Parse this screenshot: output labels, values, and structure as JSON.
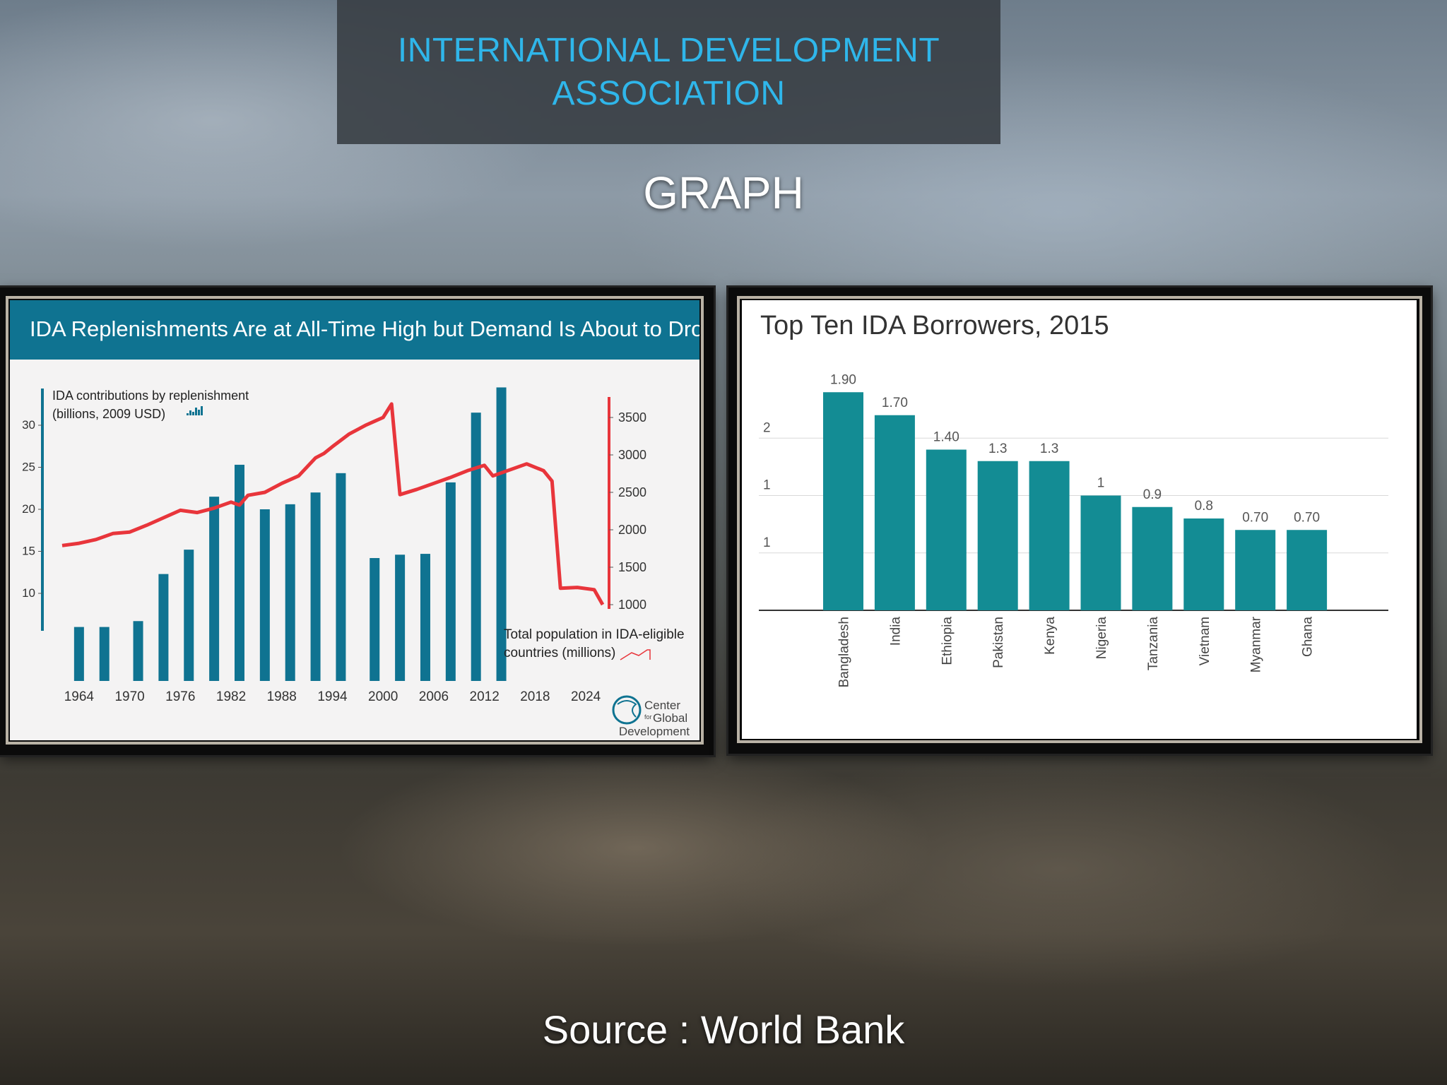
{
  "header": {
    "title": "INTERNATIONAL DEVELOPMENT\nASSOCIATION"
  },
  "subtitle": "GRAPH",
  "source": "Source : World Bank",
  "chart_data": [
    {
      "type": "bar",
      "title": "IDA Replenishments Are at All-Time High but Demand Is About to Drop",
      "left_axis_label": [
        "IDA contributions by replenishment",
        "(billions, 2009 USD)"
      ],
      "right_axis_label": [
        "Total population in IDA-eligible",
        "countries (millions)"
      ],
      "credit": [
        "Center",
        "for",
        "Global",
        "Development"
      ],
      "x_ticks": [
        "1964",
        "1970",
        "1976",
        "1982",
        "1988",
        "1994",
        "2000",
        "2006",
        "2012",
        "2018",
        "2024"
      ],
      "y_left_ticks": [
        "10",
        "15",
        "20",
        "25",
        "30"
      ],
      "y_left_range": [
        5,
        33.5
      ],
      "y_right_ticks": [
        "1000",
        "1500",
        "2000",
        "2500",
        "3000",
        "3500"
      ],
      "y_right_range": [
        1000,
        3500
      ],
      "x_range": [
        1961,
        2026
      ],
      "bars": [
        {
          "year": 1964,
          "value": 6
        },
        {
          "year": 1967,
          "value": 6
        },
        {
          "year": 1971,
          "value": 6.7
        },
        {
          "year": 1974,
          "value": 12.3
        },
        {
          "year": 1977,
          "value": 15.2
        },
        {
          "year": 1980,
          "value": 21.5
        },
        {
          "year": 1983,
          "value": 25.3
        },
        {
          "year": 1986,
          "value": 20
        },
        {
          "year": 1989,
          "value": 20.6
        },
        {
          "year": 1992,
          "value": 22
        },
        {
          "year": 1995,
          "value": 24.3
        },
        {
          "year": 1999,
          "value": 14.2
        },
        {
          "year": 2002,
          "value": 14.6
        },
        {
          "year": 2005,
          "value": 14.7
        },
        {
          "year": 2008,
          "value": 23.2
        },
        {
          "year": 2011,
          "value": 31.5
        },
        {
          "year": 2014,
          "value": 34.5
        }
      ],
      "population_series": [
        {
          "year": 1962,
          "value": 1790
        },
        {
          "year": 1964,
          "value": 1820
        },
        {
          "year": 1966,
          "value": 1870
        },
        {
          "year": 1968,
          "value": 1950
        },
        {
          "year": 1970,
          "value": 1970
        },
        {
          "year": 1972,
          "value": 2060
        },
        {
          "year": 1974,
          "value": 2160
        },
        {
          "year": 1976,
          "value": 2260
        },
        {
          "year": 1978,
          "value": 2230
        },
        {
          "year": 1980,
          "value": 2290
        },
        {
          "year": 1982,
          "value": 2370
        },
        {
          "year": 1983,
          "value": 2330
        },
        {
          "year": 1984,
          "value": 2460
        },
        {
          "year": 1986,
          "value": 2500
        },
        {
          "year": 1988,
          "value": 2620
        },
        {
          "year": 1990,
          "value": 2720
        },
        {
          "year": 1992,
          "value": 2960
        },
        {
          "year": 1993,
          "value": 3020
        },
        {
          "year": 1994,
          "value": 3110
        },
        {
          "year": 1996,
          "value": 3280
        },
        {
          "year": 1998,
          "value": 3400
        },
        {
          "year": 1999,
          "value": 3450
        },
        {
          "year": 2000,
          "value": 3500
        },
        {
          "year": 2001,
          "value": 3680
        },
        {
          "year": 2002,
          "value": 2470
        },
        {
          "year": 2004,
          "value": 2540
        },
        {
          "year": 2006,
          "value": 2620
        },
        {
          "year": 2008,
          "value": 2700
        },
        {
          "year": 2010,
          "value": 2790
        },
        {
          "year": 2012,
          "value": 2860
        },
        {
          "year": 2013,
          "value": 2720
        },
        {
          "year": 2015,
          "value": 2800
        },
        {
          "year": 2017,
          "value": 2880
        },
        {
          "year": 2019,
          "value": 2790
        },
        {
          "year": 2020,
          "value": 2650
        },
        {
          "year": 2021,
          "value": 1220
        },
        {
          "year": 2023,
          "value": 1230
        },
        {
          "year": 2025,
          "value": 1200
        },
        {
          "year": 2026,
          "value": 1000
        }
      ],
      "colors": {
        "bars": "#0f7391",
        "line": "#e8353b",
        "banner": "#0f7391",
        "axis_right": "#e8353b"
      }
    },
    {
      "type": "bar",
      "title": "Top Ten IDA Borrowers, 2015",
      "categories": [
        "Bangladesh",
        "India",
        "Ethiopia",
        "Pakistan",
        "Kenya",
        "Nigeria",
        "Tanzania",
        "Vietnam",
        "Myanmar",
        "Ghana"
      ],
      "values": [
        1.9,
        1.7,
        1.4,
        1.3,
        1.3,
        1.0,
        0.9,
        0.8,
        0.7,
        0.7
      ],
      "value_labels": [
        "1.90",
        "1.70",
        "1.40",
        "1.3",
        "1.3",
        "1",
        "0.9",
        "0.8",
        "0.70",
        "0.70"
      ],
      "y_ticks": [
        {
          "value": 0.5,
          "label": "1"
        },
        {
          "value": 1.0,
          "label": "1"
        },
        {
          "value": 1.5,
          "label": "2"
        }
      ],
      "ylim": [
        0,
        2.0
      ],
      "colors": {
        "bars": "#138c94"
      }
    }
  ]
}
